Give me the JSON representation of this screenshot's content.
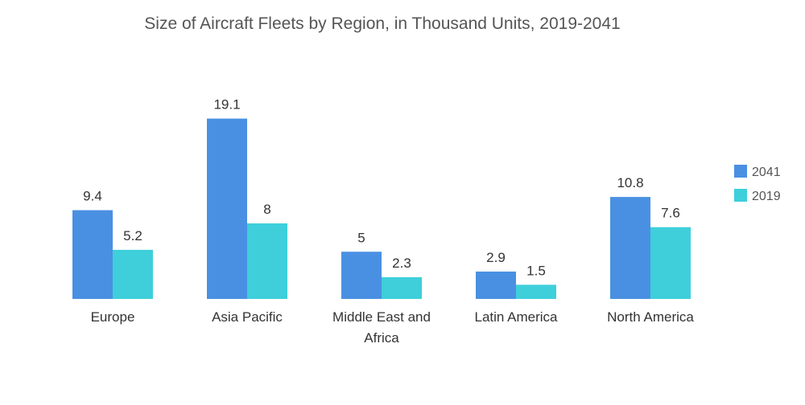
{
  "chart_data": {
    "type": "bar",
    "title": "Size of Aircraft Fleets by Region, in Thousand Units, 2019-2041",
    "xlabel": "",
    "ylabel": "",
    "ylim": [
      0,
      20
    ],
    "categories": [
      "Europe",
      "Asia Pacific",
      "Middle East and Africa",
      "Latin America",
      "North America"
    ],
    "category_lines": [
      [
        "Europe"
      ],
      [
        "Asia Pacific"
      ],
      [
        "Middle East and",
        "Africa"
      ],
      [
        "Latin America"
      ],
      [
        "North America"
      ]
    ],
    "series": [
      {
        "name": "2041",
        "values": [
          9.4,
          19.1,
          5,
          2.9,
          10.8
        ],
        "labels": [
          "9.4",
          "19.1",
          "5",
          "2.9",
          "10.8"
        ],
        "color": "#4a90e2"
      },
      {
        "name": "2019",
        "values": [
          5.2,
          8,
          2.3,
          1.5,
          7.6
        ],
        "labels": [
          "5.2",
          "8",
          "2.3",
          "1.5",
          "7.6"
        ],
        "color": "#3ecfdb"
      }
    ],
    "legend_position": "right",
    "grid": false
  }
}
